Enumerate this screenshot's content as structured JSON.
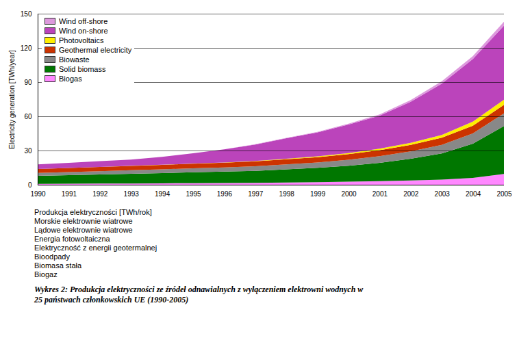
{
  "chart_data": {
    "type": "area",
    "stacked": true,
    "ylabel": "Electricity generation [TWh/year]",
    "x": [
      1990,
      1991,
      1992,
      1993,
      1994,
      1995,
      1996,
      1997,
      1998,
      1999,
      2000,
      2001,
      2002,
      2003,
      2004,
      2005
    ],
    "xlim": [
      1990,
      2005
    ],
    "xticks": [
      1990,
      1991,
      1992,
      1993,
      1994,
      1995,
      1996,
      1997,
      1998,
      1999,
      2000,
      2001,
      2002,
      2003,
      2004,
      2005
    ],
    "ylim": [
      0,
      150
    ],
    "yticks": [
      0,
      30,
      60,
      90,
      120,
      150
    ],
    "grid": true,
    "legend": "top-left",
    "series": [
      {
        "name": "Biogas",
        "color": "#ff88ff",
        "values": [
          0.8,
          0.9,
          1.0,
          1.1,
          1.2,
          1.4,
          1.5,
          1.7,
          2.0,
          2.3,
          2.7,
          3.2,
          3.8,
          4.5,
          6.0,
          9.5
        ]
      },
      {
        "name": "Solid biomass",
        "color": "#007700",
        "values": [
          7.0,
          7.5,
          8.0,
          8.5,
          9.0,
          9.5,
          10.0,
          10.5,
          11.5,
          12.5,
          14.0,
          16.0,
          19.0,
          23.0,
          30.0,
          42.0
        ]
      },
      {
        "name": "Biowaste",
        "color": "#888888",
        "values": [
          2.5,
          2.7,
          2.9,
          3.1,
          3.3,
          3.5,
          3.7,
          4.0,
          4.3,
          4.7,
          5.2,
          5.8,
          6.5,
          7.5,
          9.0,
          11.0
        ]
      },
      {
        "name": "Geothermal electricity",
        "color": "#cc3300",
        "values": [
          3.5,
          3.6,
          3.7,
          3.8,
          3.9,
          4.0,
          4.1,
          4.3,
          4.5,
          4.7,
          5.0,
          5.3,
          5.7,
          6.2,
          6.8,
          7.5
        ]
      },
      {
        "name": "Photovoltaics",
        "color": "#ffee00",
        "values": [
          0.03,
          0.05,
          0.07,
          0.09,
          0.12,
          0.15,
          0.2,
          0.3,
          0.45,
          0.65,
          0.9,
          1.3,
          1.8,
          2.5,
          3.5,
          4.5
        ]
      },
      {
        "name": "Wind on-shore",
        "color": "#bb44bb",
        "values": [
          4.0,
          4.5,
          5.0,
          5.5,
          7.0,
          9.0,
          11.5,
          14.5,
          18.0,
          21.0,
          25.0,
          29.0,
          36.0,
          45.0,
          55.0,
          65.0
        ]
      },
      {
        "name": "Wind off-shore",
        "color": "#dd99dd",
        "values": [
          0.0,
          0.0,
          0.0,
          0.0,
          0.0,
          0.0,
          0.1,
          0.2,
          0.3,
          0.5,
          0.7,
          1.0,
          1.5,
          2.0,
          2.5,
          3.5
        ]
      }
    ],
    "annotations": [
      "Produkcja elektryczności [TWh/rok]",
      "Morskie elektrownie wiatrowe",
      "Lądowe elektrownie wiatrowe",
      "Energia fotowoltaiczna",
      "Elektryczność z energii geotermalnej",
      "Bioodpady",
      "Biomasa stała",
      "Biogaz"
    ],
    "caption": [
      "Wykres 2:  Produkcja elektryczności ze źródeł odnawialnych z wyłączeniem elektrowni wodnych w",
      "25 państwach członkowskich UE (1990-2005)"
    ]
  }
}
